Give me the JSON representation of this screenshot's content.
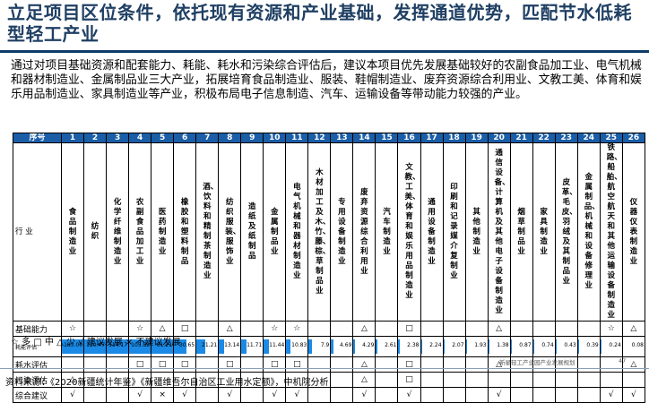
{
  "title": "立足项目区位条件，依托现有资源和产业基础，发挥通道优势，匹配节水低耗型轻工产业",
  "body": "通过对项目基础资源和配套能力、耗能、耗水和污染综合评估后，建议本项目优先发展基础较好的农副食品加工业、电气机械和器材制造业、金属制品业三大产业，拓展培育食品制造业、服装、鞋帽制造业、废弃资源综合利用业、文教工美、体育和娱乐用品制造业、家具制造业等产业，积极布局电子信息制造、汽车、运输设备等带动能力较强的产业。",
  "table": {
    "header_label": "序号",
    "numbers": [
      "1",
      "2",
      "3",
      "4",
      "5",
      "6",
      "7",
      "8",
      "9",
      "10",
      "11",
      "12",
      "13",
      "14",
      "15",
      "16",
      "17",
      "18",
      "19",
      "20",
      "21",
      "22",
      "23",
      "24",
      "25",
      "26"
    ],
    "row_labels": {
      "industry": "行 业",
      "basic": "基础能力",
      "energy": "耗能评估",
      "water": "耗水评估",
      "pollution": "污染评估",
      "overall": "综合建议"
    },
    "industries": [
      "食品制造业",
      "纺织",
      "化学纤维制造业",
      "农副食品加工业",
      "医药制造业",
      "橡胶和塑料制品",
      "酒、饮料和精制茶制造业",
      "纺织服装、服饰业",
      "造纸及纸制品",
      "金属制品业",
      "电气机械和器材制造业",
      "木材加工及木、竹、藤、棕、草制品业",
      "专用设备制造业",
      "废弃资源综合利用业",
      "汽车制造业",
      "文教、工美、体育和娱乐用品制造业",
      "通用设备制造业",
      "印刷和记录媒介复制业",
      "其他制造业",
      "通信设备、计算机及其他电子设备制造业",
      "烟草制品业",
      "家具制造业",
      "皮革、毛皮、羽绒及其制品业",
      "金属制品、机械和设备修理业",
      "铁路、船舶、航空航天和其他运输设备制造业",
      "仪器仪表制造业"
    ],
    "basic": [
      "☆",
      "",
      "",
      "☆",
      "△",
      "□",
      "",
      "△",
      "",
      "☆",
      "☆",
      "",
      "",
      "△",
      "",
      "□",
      "",
      "",
      "",
      "△",
      "",
      "",
      "",
      "",
      "☆",
      "△"
    ],
    "energy": [
      "183.00",
      "120.47",
      "114.17",
      "105.82",
      "51.21",
      "30.65",
      "21.21",
      "13.14",
      "11.71",
      "11.44",
      "10.83",
      "7.9",
      "4.69",
      "4.29",
      "2.61",
      "2.38",
      "2.24",
      "2.07",
      "1.93",
      "1.38",
      "0.87",
      "0.74",
      "0.43",
      "0.39",
      "0.24",
      "0.08"
    ],
    "energy_max": 183,
    "water": [
      "",
      "",
      "",
      "□",
      "□",
      "□",
      "",
      "□",
      "",
      "□",
      "□",
      "",
      "",
      "△",
      "",
      "□",
      "",
      "",
      "",
      "△",
      "",
      "",
      "",
      "",
      "",
      "△"
    ],
    "pollution": [
      "△",
      "",
      "",
      "",
      "",
      "",
      "",
      "",
      "",
      "",
      "",
      "",
      "",
      "△",
      "",
      "□",
      "",
      "",
      "",
      "",
      "",
      "",
      "",
      "",
      "",
      ""
    ],
    "overall": [
      "√",
      "",
      "",
      "√",
      "×",
      "√",
      "",
      "√",
      "",
      "√",
      "√",
      "",
      "",
      "√",
      "",
      "√",
      "",
      "",
      "",
      "√",
      "",
      "",
      "",
      "",
      "√",
      "√"
    ]
  },
  "legend": "☆ 多  □ 中  △ 少  √ 建议发展  × 不建议发展",
  "source": "资料来源：《2020新疆统计年鉴》《新疆维吾尔自治区工业用水定额》，中机院分析",
  "footer": "新星轻工产业园产业发展规划",
  "page_number": "47",
  "colors": {
    "header_bg": "#1a5ea8",
    "bar": "#1a8ae6",
    "title": "#1f3f63"
  }
}
